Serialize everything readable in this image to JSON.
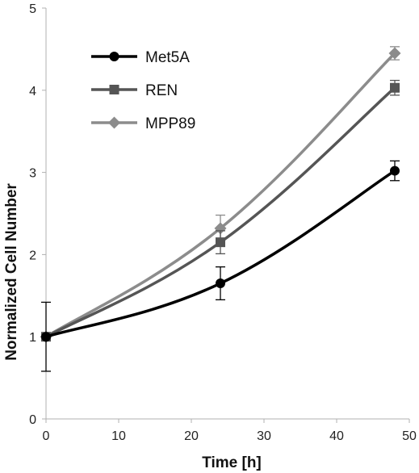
{
  "chart_data": {
    "type": "line",
    "title": "",
    "xlabel": "Time [h]",
    "ylabel": "Normalized Cell Number",
    "xlim": [
      0,
      50
    ],
    "ylim": [
      0,
      5
    ],
    "xticks": [
      0,
      10,
      20,
      30,
      40,
      50
    ],
    "yticks": [
      0,
      1,
      2,
      3,
      4,
      5
    ],
    "x": [
      0,
      24,
      48
    ],
    "grid": false,
    "legend_position": "top-left",
    "series": [
      {
        "name": "Met5A",
        "values": [
          1.0,
          1.65,
          3.02
        ],
        "errors": [
          0.42,
          0.2,
          0.12
        ],
        "marker": "circle",
        "color": "#000000"
      },
      {
        "name": "REN",
        "values": [
          1.0,
          2.15,
          4.03
        ],
        "errors": [
          0.0,
          0.14,
          0.09
        ],
        "marker": "square",
        "color": "#555555"
      },
      {
        "name": "MPP89",
        "values": [
          1.0,
          2.32,
          4.45
        ],
        "errors": [
          0.0,
          0.16,
          0.08
        ],
        "marker": "diamond",
        "color": "#8c8c8c"
      }
    ]
  }
}
